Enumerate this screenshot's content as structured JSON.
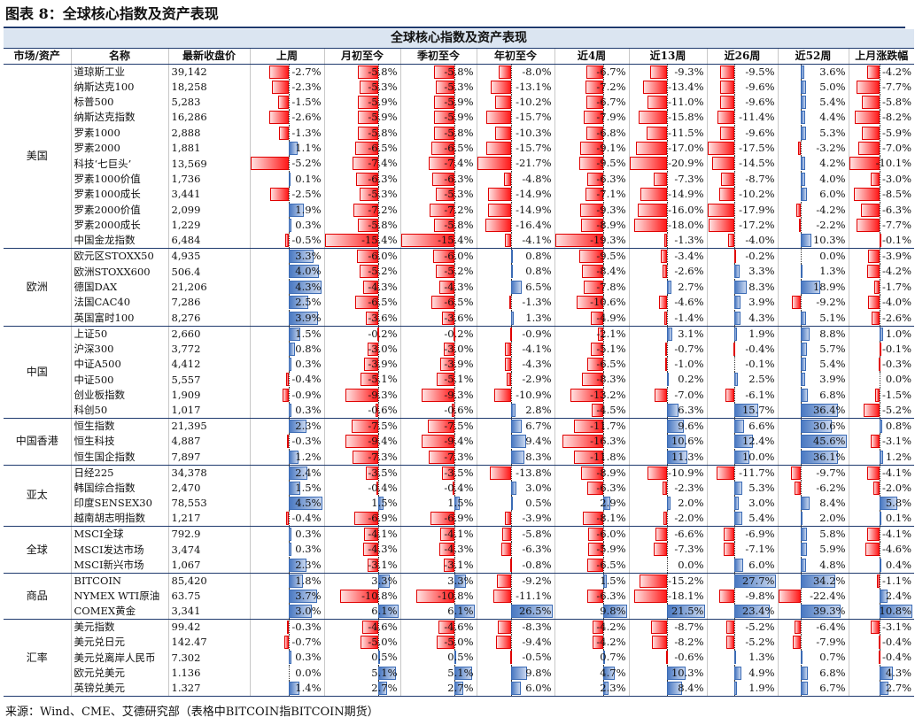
{
  "figure_title": "图表 8：全球核心指数及资产表现",
  "table_title": "全球核心指数及资产表现",
  "headers": [
    "市场/资产",
    "名称",
    "最新收盘价",
    "上周",
    "月初至今",
    "季初至今",
    "年初至今",
    "近4周",
    "近13周",
    "近26周",
    "近52周",
    "上月涨跌幅"
  ],
  "metric_scale": [
    4,
    10,
    10,
    15,
    12,
    16,
    13,
    32,
    10
  ],
  "colors": {
    "positive_bar": "#4a79c2",
    "negative_bar": "#ff1a1a",
    "header_bg": "#dbe5f1",
    "rule": "#1f3a6e"
  },
  "source": "来源：Wind、CME、艾德研究部（表格中BITCOIN指BITCOIN期货）",
  "groups": [
    {
      "market": "美国",
      "rows": [
        {
          "name": "道琼斯工业",
          "price": "39,142",
          "v": [
            "-2.7%",
            "-5.8%",
            "-5.8%",
            "-8.0%",
            "-6.7%",
            "-9.3%",
            "-9.5%",
            "3.6%",
            "-4.2%"
          ]
        },
        {
          "name": "纳斯达克100",
          "price": "18,258",
          "v": [
            "-2.3%",
            "-5.3%",
            "-5.3%",
            "-13.1%",
            "-7.2%",
            "-13.4%",
            "-9.6%",
            "5.0%",
            "-7.7%"
          ]
        },
        {
          "name": "标普500",
          "price": "5,283",
          "v": [
            "-1.5%",
            "-5.9%",
            "-5.9%",
            "-10.2%",
            "-6.7%",
            "-11.0%",
            "-9.6%",
            "5.4%",
            "-5.8%"
          ]
        },
        {
          "name": "纳斯达克指数",
          "price": "16,286",
          "v": [
            "-2.6%",
            "-5.9%",
            "-5.9%",
            "-15.7%",
            "-7.9%",
            "-15.8%",
            "-11.4%",
            "4.4%",
            "-8.2%"
          ]
        },
        {
          "name": "罗素1000",
          "price": "2,888",
          "v": [
            "-1.3%",
            "-5.8%",
            "-5.8%",
            "-10.3%",
            "-6.8%",
            "-11.5%",
            "-9.6%",
            "5.3%",
            "-5.9%"
          ]
        },
        {
          "name": "罗素2000",
          "price": "1,881",
          "v": [
            "1.1%",
            "-6.5%",
            "-6.5%",
            "-15.7%",
            "-9.1%",
            "-17.0%",
            "-17.5%",
            "-3.2%",
            "-7.0%"
          ]
        },
        {
          "name": "科技‘七巨头’",
          "price": "13,569",
          "v": [
            "-5.2%",
            "-7.4%",
            "-7.4%",
            "-21.7%",
            "-9.5%",
            "-20.9%",
            "-14.5%",
            "4.2%",
            "-10.1%"
          ]
        },
        {
          "name": "罗素1000价值",
          "price": "1,736",
          "v": [
            "0.1%",
            "-6.3%",
            "-6.3%",
            "-4.8%",
            "-6.3%",
            "-7.3%",
            "-8.7%",
            "4.0%",
            "-3.0%"
          ]
        },
        {
          "name": "罗素1000成长",
          "price": "3,441",
          "v": [
            "-2.5%",
            "-5.3%",
            "-5.3%",
            "-14.9%",
            "-7.1%",
            "-14.9%",
            "-10.2%",
            "6.0%",
            "-8.5%"
          ]
        },
        {
          "name": "罗素2000价值",
          "price": "2,099",
          "v": [
            "1.9%",
            "-7.2%",
            "-7.2%",
            "-14.9%",
            "-9.3%",
            "-16.0%",
            "-17.9%",
            "-4.2%",
            "-6.3%"
          ]
        },
        {
          "name": "罗素2000成长",
          "price": "1,229",
          "v": [
            "0.3%",
            "-5.8%",
            "-5.8%",
            "-16.4%",
            "-8.9%",
            "-18.0%",
            "-17.2%",
            "-2.2%",
            "-7.7%"
          ]
        },
        {
          "name": "中国金龙指数",
          "price": "6,484",
          "v": [
            "-0.5%",
            "-15.4%",
            "-15.4%",
            "-4.1%",
            "-19.3%",
            "-1.3%",
            "-4.0%",
            "10.3%",
            "-0.1%"
          ]
        }
      ]
    },
    {
      "market": "欧洲",
      "rows": [
        {
          "name": "欧元区STOXX50",
          "price": "4,935",
          "v": [
            "3.3%",
            "-6.0%",
            "-6.0%",
            "0.8%",
            "-9.5%",
            "-3.4%",
            "-0.2%",
            "0.0%",
            "-3.9%"
          ]
        },
        {
          "name": "欧洲STOXX600",
          "price": "506.4",
          "v": [
            "4.0%",
            "-5.2%",
            "-5.2%",
            "0.8%",
            "-8.4%",
            "-2.6%",
            "3.3%",
            "1.3%",
            "-4.2%"
          ]
        },
        {
          "name": "德国DAX",
          "price": "21,206",
          "v": [
            "4.3%",
            "-4.3%",
            "-4.3%",
            "6.5%",
            "-7.8%",
            "2.7%",
            "8.3%",
            "18.9%",
            "-1.7%"
          ]
        },
        {
          "name": "法国CAC40",
          "price": "7,286",
          "v": [
            "2.5%",
            "-6.5%",
            "-6.5%",
            "-1.3%",
            "-10.6%",
            "-4.6%",
            "3.9%",
            "-9.2%",
            "-4.0%"
          ]
        },
        {
          "name": "英国富时100",
          "price": "8,276",
          "v": [
            "3.9%",
            "-3.6%",
            "-3.6%",
            "1.3%",
            "-4.9%",
            "-1.4%",
            "4.3%",
            "5.1%",
            "-2.6%"
          ]
        }
      ]
    },
    {
      "market": "中国",
      "rows": [
        {
          "name": "上证50",
          "price": "2,660",
          "v": [
            "1.5%",
            "-0.2%",
            "-0.2%",
            "-0.9%",
            "-2.1%",
            "3.1%",
            "1.9%",
            "8.8%",
            "1.0%"
          ]
        },
        {
          "name": "沪深300",
          "price": "3,772",
          "v": [
            "0.8%",
            "-3.0%",
            "-3.0%",
            "-4.1%",
            "-5.1%",
            "-0.7%",
            "-0.4%",
            "5.7%",
            "-0.1%"
          ]
        },
        {
          "name": "中证A500",
          "price": "4,412",
          "v": [
            "0.3%",
            "-3.9%",
            "-3.9%",
            "-4.3%",
            "-6.5%",
            "-1.0%",
            "-0.1%",
            "5.4%",
            "-0.3%"
          ]
        },
        {
          "name": "中证500",
          "price": "5,557",
          "v": [
            "-0.4%",
            "-5.1%",
            "-5.1%",
            "-2.9%",
            "-8.3%",
            "0.2%",
            "2.5%",
            "3.9%",
            "0.0%"
          ]
        },
        {
          "name": "创业板指数",
          "price": "1,909",
          "v": [
            "-0.9%",
            "-9.3%",
            "-9.3%",
            "-10.9%",
            "-13.2%",
            "-7.0%",
            "-6.1%",
            "6.8%",
            "-1.5%"
          ]
        },
        {
          "name": "科创50",
          "price": "1,017",
          "v": [
            "0.3%",
            "-0.6%",
            "-0.6%",
            "2.8%",
            "-4.5%",
            "6.3%",
            "15.7%",
            "36.4%",
            "-5.2%"
          ]
        }
      ]
    },
    {
      "market": "中国香港",
      "rows": [
        {
          "name": "恒生指数",
          "price": "21,395",
          "v": [
            "2.3%",
            "-7.5%",
            "-7.5%",
            "6.7%",
            "-11.7%",
            "9.6%",
            "6.6%",
            "30.6%",
            "0.8%"
          ]
        },
        {
          "name": "恒生科技",
          "price": "4,887",
          "v": [
            "-0.3%",
            "-9.4%",
            "-9.4%",
            "9.4%",
            "-16.3%",
            "10.6%",
            "12.4%",
            "45.6%",
            "-3.1%"
          ]
        },
        {
          "name": "恒生国企指数",
          "price": "7,897",
          "v": [
            "1.2%",
            "-7.3%",
            "-7.3%",
            "8.3%",
            "-11.8%",
            "11.3%",
            "10.0%",
            "36.1%",
            "1.2%"
          ]
        }
      ]
    },
    {
      "market": "亚太",
      "rows": [
        {
          "name": "日经225",
          "price": "34,378",
          "v": [
            "2.4%",
            "-3.5%",
            "-3.5%",
            "-13.8%",
            "-8.9%",
            "-10.9%",
            "-11.7%",
            "-9.7%",
            "-4.1%"
          ]
        },
        {
          "name": "韩国综合指数",
          "price": "2,470",
          "v": [
            "1.5%",
            "-0.4%",
            "-0.4%",
            "3.0%",
            "-6.3%",
            "-2.3%",
            "5.3%",
            "-6.2%",
            "-2.0%"
          ]
        },
        {
          "name": "印度SENSEX30",
          "price": "78,553",
          "v": [
            "4.5%",
            "1.5%",
            "1.5%",
            "0.5%",
            "2.9%",
            "2.0%",
            "3.0%",
            "8.4%",
            "5.8%"
          ]
        },
        {
          "name": "越南胡志明指数",
          "price": "1,217",
          "v": [
            "-0.4%",
            "-6.9%",
            "-6.9%",
            "-3.9%",
            "-8.1%",
            "-2.0%",
            "5.4%",
            "2.0%",
            "0.1%"
          ]
        }
      ]
    },
    {
      "market": "全球",
      "rows": [
        {
          "name": "MSCI全球",
          "price": "792.9",
          "v": [
            "0.3%",
            "-4.1%",
            "-4.1%",
            "-5.8%",
            "-6.0%",
            "-6.6%",
            "-6.9%",
            "5.8%",
            "-4.1%"
          ]
        },
        {
          "name": "MSCI发达市场",
          "price": "3,474",
          "v": [
            "0.3%",
            "-4.3%",
            "-4.3%",
            "-6.3%",
            "-5.9%",
            "-7.3%",
            "-7.1%",
            "5.9%",
            "-4.6%"
          ]
        },
        {
          "name": "MSCI新兴市场",
          "price": "1,067",
          "v": [
            "2.3%",
            "-3.1%",
            "-3.1%",
            "-0.8%",
            "-6.5%",
            "0.0%",
            "6.0%",
            "4.8%",
            "0.4%"
          ]
        }
      ]
    },
    {
      "market": "商品",
      "rows": [
        {
          "name": "BITCOIN",
          "price": "85,420",
          "v": [
            "1.8%",
            "3.3%",
            "3.3%",
            "-9.2%",
            "1.5%",
            "-15.2%",
            "27.7%",
            "34.2%",
            "-1.1%"
          ]
        },
        {
          "name": "NYMEX WTI原油",
          "price": "63.75",
          "v": [
            "3.7%",
            "-10.8%",
            "-10.8%",
            "-11.1%",
            "-6.3%",
            "-18.1%",
            "-9.8%",
            "-22.4%",
            "2.4%"
          ]
        },
        {
          "name": "COMEX黄金",
          "price": "3,341",
          "v": [
            "3.0%",
            "6.1%",
            "6.1%",
            "26.5%",
            "9.8%",
            "21.5%",
            "23.4%",
            "39.3%",
            "10.8%"
          ]
        }
      ]
    },
    {
      "market": "汇率",
      "rows": [
        {
          "name": "美元指数",
          "price": "99.42",
          "v": [
            "-0.3%",
            "-4.6%",
            "-4.6%",
            "-8.3%",
            "-4.2%",
            "-8.7%",
            "-5.2%",
            "-6.4%",
            "-3.1%"
          ]
        },
        {
          "name": "美元兑日元",
          "price": "142.47",
          "v": [
            "-0.7%",
            "-5.0%",
            "-5.0%",
            "-9.4%",
            "-4.2%",
            "-8.2%",
            "-5.2%",
            "-7.9%",
            "-0.4%"
          ]
        },
        {
          "name": "美元兑离岸人民币",
          "price": "7.302",
          "v": [
            "0.3%",
            "0.5%",
            "0.5%",
            "-0.5%",
            "0.7%",
            "-0.6%",
            "1.3%",
            "0.7%",
            "-0.4%"
          ]
        },
        {
          "name": "欧元兑美元",
          "price": "1.136",
          "v": [
            "0.0%",
            "5.1%",
            "5.1%",
            "9.8%",
            "4.7%",
            "10.3%",
            "4.9%",
            "6.8%",
            "4.3%"
          ]
        },
        {
          "name": "英镑兑美元",
          "price": "1.327",
          "v": [
            "1.4%",
            "2.7%",
            "2.7%",
            "6.0%",
            "2.3%",
            "8.4%",
            "1.9%",
            "6.7%",
            "2.7%"
          ]
        }
      ]
    }
  ]
}
